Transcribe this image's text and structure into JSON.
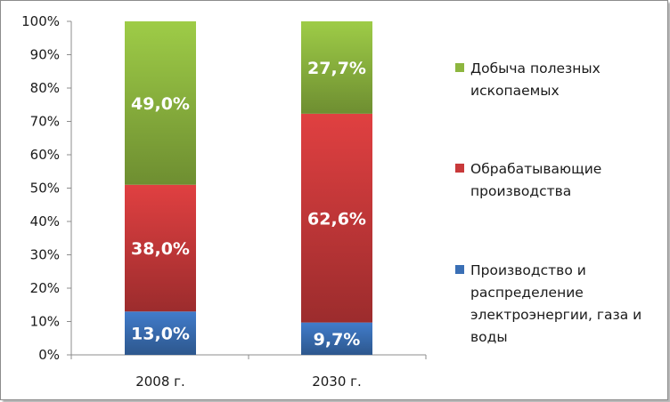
{
  "chart_data": {
    "type": "bar",
    "stacked": true,
    "categories": [
      "2008 г.",
      "2030 г."
    ],
    "series": [
      {
        "name": "Производство и распределение электроэнергии, газа и воды",
        "legend_lines": [
          "Производство и",
          "распределение",
          "электроэнергии, газа и",
          "воды"
        ],
        "values": [
          13.0,
          9.7
        ],
        "labels": [
          "13,0%",
          "9,7%"
        ],
        "color": "#3a6fb5"
      },
      {
        "name": "Обрабатывающие производства",
        "legend_lines": [
          "Обрабатывающие",
          "производства"
        ],
        "values": [
          38.0,
          62.6
        ],
        "labels": [
          "38,0%",
          "62,6%"
        ],
        "color": "#c8393a"
      },
      {
        "name": "Добыча полезных ископаемых",
        "legend_lines": [
          "Добыча полезных",
          "ископаемых"
        ],
        "values": [
          49.0,
          27.7
        ],
        "labels": [
          "49,0%",
          "27,7%"
        ],
        "color": "#8db63f"
      }
    ],
    "y_ticks": [
      "0%",
      "10%",
      "20%",
      "30%",
      "40%",
      "50%",
      "60%",
      "70%",
      "80%",
      "90%",
      "100%"
    ],
    "ylim": [
      0,
      100
    ],
    "grid": false,
    "legend_position": "right",
    "title": "",
    "xlabel": "",
    "ylabel": ""
  }
}
